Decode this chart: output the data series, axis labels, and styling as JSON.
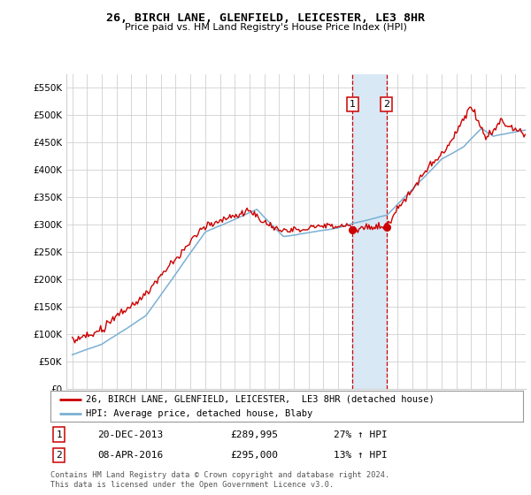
{
  "title": "26, BIRCH LANE, GLENFIELD, LEICESTER, LE3 8HR",
  "subtitle": "Price paid vs. HM Land Registry's House Price Index (HPI)",
  "ylim": [
    0,
    575000
  ],
  "yticks": [
    0,
    50000,
    100000,
    150000,
    200000,
    250000,
    300000,
    350000,
    400000,
    450000,
    500000,
    550000
  ],
  "ytick_labels": [
    "£0",
    "£50K",
    "£100K",
    "£150K",
    "£200K",
    "£250K",
    "£300K",
    "£350K",
    "£400K",
    "£450K",
    "£500K",
    "£550K"
  ],
  "transaction1": {
    "date": "20-DEC-2013",
    "price": 289995,
    "hpi_pct": "27%"
  },
  "transaction2": {
    "date": "08-APR-2016",
    "price": 295000,
    "hpi_pct": "13%"
  },
  "transaction1_x": 2013.97,
  "transaction2_x": 2016.27,
  "legend_line1": "26, BIRCH LANE, GLENFIELD, LEICESTER,  LE3 8HR (detached house)",
  "legend_line2": "HPI: Average price, detached house, Blaby",
  "footnote": "Contains HM Land Registry data © Crown copyright and database right 2024.\nThis data is licensed under the Open Government Licence v3.0.",
  "red_color": "#cc0000",
  "blue_color": "#7ab0d4",
  "shade_color": "#d8e8f5",
  "background_color": "#ffffff",
  "grid_color": "#d0d0d0",
  "title_fontsize": 9.5,
  "subtitle_fontsize": 8,
  "tick_fontsize": 7.5,
  "legend_fontsize": 7.5,
  "table_fontsize": 8
}
